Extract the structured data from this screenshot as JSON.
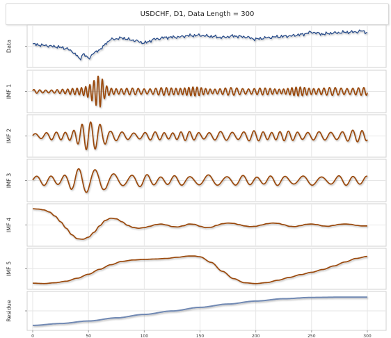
{
  "chart_data": {
    "type": "line",
    "title": "USDCHF, D1, Data Length = 300",
    "xlim": [
      0,
      300
    ],
    "x_ticks": [
      0,
      50,
      100,
      150,
      200,
      250,
      300
    ],
    "grid": true,
    "colors": {
      "data": "#2a4d8a",
      "imf": "#9a4a0c",
      "residue": "#7189b3",
      "grid": "#e6e6e6",
      "panel_border": "#d0d0d0"
    },
    "panels": [
      {
        "name": "Data",
        "x": [
          0,
          10,
          20,
          30,
          35,
          40,
          42,
          45,
          50,
          55,
          60,
          63,
          66,
          70,
          80,
          90,
          100,
          110,
          120,
          130,
          140,
          150,
          160,
          170,
          180,
          190,
          200,
          210,
          220,
          230,
          240,
          250,
          260,
          270,
          280,
          290,
          295,
          300
        ],
        "values": [
          0.12,
          0.05,
          -0.02,
          -0.12,
          -0.3,
          -0.55,
          -0.8,
          -0.45,
          -0.7,
          -0.4,
          -0.2,
          -0.05,
          0.2,
          0.4,
          0.48,
          0.35,
          0.2,
          0.42,
          0.52,
          0.54,
          0.62,
          0.64,
          0.58,
          0.52,
          0.6,
          0.55,
          0.42,
          0.5,
          0.56,
          0.6,
          0.68,
          0.82,
          0.72,
          0.78,
          0.82,
          0.84,
          0.9,
          0.8
        ],
        "ylim": [
          -1,
          1
        ]
      },
      {
        "name": "IMF 1",
        "x": [
          0,
          10,
          20,
          30,
          35,
          40,
          45,
          50,
          55,
          58,
          60,
          62,
          65,
          70,
          80,
          100,
          120,
          140,
          160,
          180,
          200,
          220,
          240,
          260,
          280,
          300
        ],
        "amplitude": [
          0.12,
          0.12,
          0.12,
          0.14,
          0.22,
          0.28,
          0.35,
          0.45,
          0.7,
          0.95,
          1.0,
          0.85,
          0.45,
          0.28,
          0.2,
          0.22,
          0.24,
          0.3,
          0.2,
          0.24,
          0.22,
          0.2,
          0.28,
          0.24,
          0.26,
          0.24
        ],
        "period": 4.5,
        "ylim": [
          -1.05,
          1.05
        ]
      },
      {
        "name": "IMF 2",
        "x": [
          0,
          20,
          30,
          35,
          40,
          45,
          50,
          55,
          60,
          65,
          70,
          80,
          100,
          120,
          140,
          160,
          180,
          200,
          220,
          240,
          260,
          280,
          300
        ],
        "amplitude": [
          0.2,
          0.24,
          0.3,
          0.42,
          0.58,
          0.78,
          0.88,
          0.95,
          1.0,
          0.7,
          0.35,
          0.25,
          0.25,
          0.26,
          0.28,
          0.26,
          0.3,
          0.32,
          0.3,
          0.3,
          0.26,
          0.34,
          0.4
        ],
        "period": 9,
        "ylim": [
          -1.05,
          1.05
        ]
      },
      {
        "name": "IMF 3",
        "x": [
          0,
          20,
          30,
          35,
          40,
          45,
          50,
          55,
          60,
          65,
          70,
          80,
          100,
          120,
          140,
          160,
          180,
          200,
          220,
          240,
          260,
          280,
          300
        ],
        "amplitude": [
          0.3,
          0.34,
          0.45,
          0.6,
          0.75,
          0.9,
          1.0,
          0.98,
          0.85,
          0.6,
          0.45,
          0.45,
          0.4,
          0.3,
          0.34,
          0.36,
          0.34,
          0.3,
          0.32,
          0.32,
          0.3,
          0.32,
          0.34
        ],
        "period": 14.5,
        "ylim": [
          -1.1,
          1.1
        ]
      },
      {
        "name": "IMF 4",
        "x": [
          0,
          5,
          10,
          15,
          20,
          25,
          30,
          35,
          40,
          45,
          50,
          55,
          60,
          65,
          70,
          75,
          80,
          85,
          90,
          95,
          100,
          105,
          110,
          115,
          120,
          125,
          130,
          135,
          140,
          145,
          150,
          155,
          160,
          165,
          170,
          175,
          180,
          185,
          190,
          195,
          200,
          205,
          210,
          215,
          220,
          225,
          230,
          235,
          240,
          245,
          250,
          255,
          260,
          265,
          270,
          275,
          280,
          285,
          290,
          295,
          300
        ],
        "values": [
          1.0,
          0.98,
          0.93,
          0.8,
          0.55,
          0.2,
          -0.2,
          -0.6,
          -0.85,
          -0.88,
          -0.75,
          -0.45,
          -0.05,
          0.28,
          0.42,
          0.38,
          0.2,
          -0.02,
          -0.15,
          -0.2,
          -0.16,
          -0.08,
          0.02,
          0.06,
          0.0,
          -0.1,
          -0.12,
          -0.05,
          0.06,
          0.04,
          -0.08,
          -0.16,
          -0.14,
          -0.02,
          0.08,
          0.12,
          0.1,
          0.02,
          -0.06,
          -0.1,
          -0.08,
          0.0,
          0.08,
          0.12,
          0.1,
          0.02,
          -0.08,
          -0.1,
          -0.04,
          0.04,
          0.06,
          0.02,
          -0.06,
          -0.08,
          -0.02,
          0.04,
          0.06,
          0.04,
          -0.02,
          -0.06,
          -0.06
        ],
        "ylim": [
          -1.05,
          1.05
        ]
      },
      {
        "name": "IMF 5",
        "x": [
          0,
          10,
          20,
          30,
          40,
          50,
          60,
          70,
          80,
          90,
          100,
          110,
          120,
          130,
          140,
          145,
          150,
          160,
          170,
          180,
          190,
          200,
          210,
          220,
          230,
          240,
          250,
          260,
          270,
          280,
          290,
          300
        ],
        "values": [
          -0.95,
          -0.97,
          -0.93,
          -0.85,
          -0.7,
          -0.5,
          -0.25,
          -0.02,
          0.15,
          0.22,
          0.25,
          0.27,
          0.3,
          0.36,
          0.42,
          0.42,
          0.38,
          0.1,
          -0.35,
          -0.72,
          -0.93,
          -0.97,
          -0.92,
          -0.8,
          -0.66,
          -0.52,
          -0.4,
          -0.26,
          -0.08,
          0.12,
          0.3,
          0.4
        ],
        "ylim": [
          -1.05,
          0.6
        ]
      },
      {
        "name": "Residue",
        "x": [
          0,
          25,
          50,
          75,
          100,
          125,
          150,
          175,
          200,
          225,
          250,
          275,
          300
        ],
        "values": [
          -1.0,
          -0.88,
          -0.72,
          -0.52,
          -0.3,
          -0.08,
          0.15,
          0.36,
          0.55,
          0.7,
          0.78,
          0.8,
          0.8
        ],
        "ylim": [
          -1.05,
          0.9
        ]
      }
    ]
  }
}
